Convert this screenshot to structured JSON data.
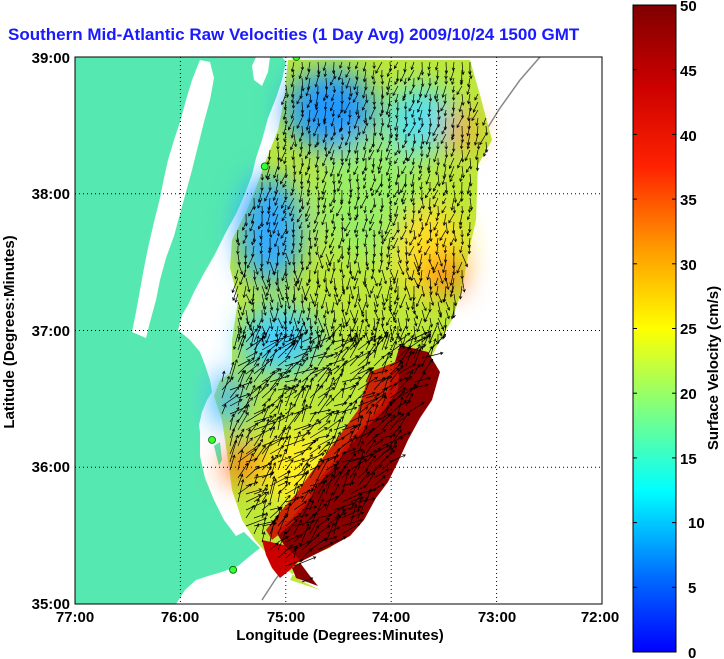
{
  "title": "Southern Mid-Atlantic Raw Velocities (1 Day Avg) 2009/10/24 1500 GMT",
  "xlabel": "Longitude (Degrees:Minutes)",
  "ylabel": "Latitude (Degrees:Minutes)",
  "colorbar_label": "Surface Velocity (cm/s)",
  "x_ticks": [
    "77:00",
    "76:00",
    "75:00",
    "74:00",
    "73:00",
    "72:00"
  ],
  "y_ticks": [
    "39:00",
    "38:00",
    "37:00",
    "36:00",
    "35:00"
  ],
  "colorbar_ticks": [
    "50",
    "45",
    "40",
    "35",
    "30",
    "25",
    "20",
    "15",
    "10",
    "5",
    "0"
  ],
  "colors": {
    "land": "#55e8b0",
    "water": "#ffffff",
    "title": "#1a1aff",
    "station": "#33ff33"
  },
  "chart_data": {
    "type": "heatmap",
    "title": "Southern Mid-Atlantic Raw Velocities (1 Day Avg) 2009/10/24 1500 GMT",
    "xlabel": "Longitude (Degrees:Minutes)",
    "ylabel": "Latitude (Degrees:Minutes)",
    "xlim": [
      -77,
      -72
    ],
    "ylim": [
      35,
      39
    ],
    "colorbar": {
      "label": "Surface Velocity (cm/s)",
      "range": [
        0,
        50
      ],
      "colormap": "jet"
    },
    "grid": true,
    "speed_regions": [
      {
        "lon": -74.6,
        "lat": 38.6,
        "speed_cms": 8
      },
      {
        "lon": -73.6,
        "lat": 38.5,
        "speed_cms": 22
      },
      {
        "lon": -74.5,
        "lat": 37.6,
        "speed_cms": 22
      },
      {
        "lon": -73.9,
        "lat": 36.8,
        "speed_cms": 48
      },
      {
        "lon": -74.4,
        "lat": 35.8,
        "speed_cms": 49
      },
      {
        "lon": -75.3,
        "lat": 36.2,
        "speed_cms": 20
      },
      {
        "lon": -75.0,
        "lat": 37.2,
        "speed_cms": 12
      }
    ],
    "stations": [
      {
        "lon": -74.9,
        "lat": 39.0
      },
      {
        "lon": -75.2,
        "lat": 38.2
      },
      {
        "lon": -75.7,
        "lat": 36.2
      },
      {
        "lon": -75.5,
        "lat": 35.25
      }
    ]
  }
}
